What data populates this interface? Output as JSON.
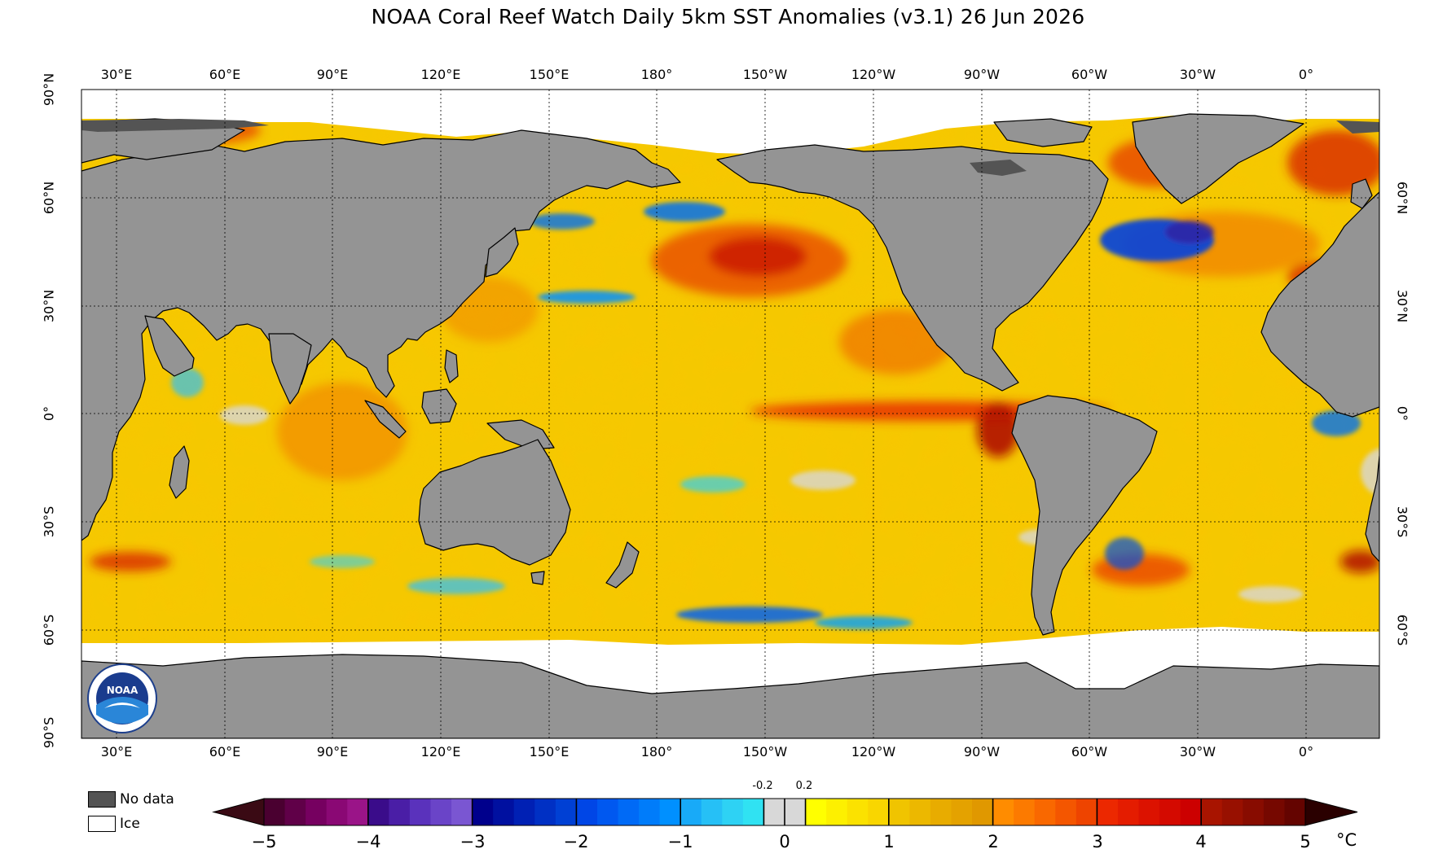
{
  "title": "NOAA Coral Reef Watch Daily 5km SST Anomalies  (v3.1)   26 Jun 2026",
  "longitude_labels": [
    "30°E",
    "60°E",
    "90°E",
    "120°E",
    "150°E",
    "180°",
    "150°W",
    "120°W",
    "90°W",
    "60°W",
    "30°W",
    "0°"
  ],
  "latitude_labels_left": [
    "90°N",
    "60°N",
    "30°N",
    "0°",
    "30°S",
    "60°S",
    "90°S"
  ],
  "latitude_labels_right": [
    "60°N",
    "30°N",
    "0°",
    "30°S",
    "60°S"
  ],
  "legend": {
    "no_data": "No data",
    "ice": "Ice",
    "no_data_color": "#545454",
    "ice_color": "#ffffff",
    "land_color": "#949494"
  },
  "colorbar": {
    "unit": "°C",
    "tick_labels": [
      "−5",
      "−4",
      "−3",
      "−2",
      "−1",
      "0",
      "1",
      "2",
      "3",
      "4",
      "5"
    ],
    "small_tick_labels": [
      "-0.2",
      "0.2"
    ],
    "colors": {
      "below": "#3a0a14",
      "neg5_to_neg4": [
        "#4a0030",
        "#600048",
        "#760060",
        "#8a0874",
        "#9a1488"
      ],
      "neg4_to_neg3": [
        "#3a0c8a",
        "#4a1ea6",
        "#5a32bc",
        "#6a44c8",
        "#7a56d2"
      ],
      "neg3_to_neg2": [
        "#00008c",
        "#0010a0",
        "#0020b4",
        "#0030c4",
        "#0040d4"
      ],
      "neg2_to_neg1": [
        "#0046e6",
        "#0058f0",
        "#006af6",
        "#007cfa",
        "#0090ff"
      ],
      "neg1_to_neg02": [
        "#18aaf8",
        "#26c0f6",
        "#2ed2f4",
        "#30e2f2"
      ],
      "neutral": "#d8d8d8",
      "p02_to_1": [
        "#ffff00",
        "#fdf000",
        "#fbe200",
        "#f9d600"
      ],
      "p1_to_2": [
        "#f0c400",
        "#ecb800",
        "#e8ac00",
        "#e4a200",
        "#e09800"
      ],
      "p2_to_3": [
        "#ff8c00",
        "#fc7a00",
        "#f96800",
        "#f45600",
        "#ee4400"
      ],
      "p3_to_4": [
        "#ec2800",
        "#e41c00",
        "#dc1200",
        "#d40a00",
        "#cc0000"
      ],
      "p4_to_5": [
        "#a81400",
        "#981000",
        "#880c00",
        "#760800",
        "#640400"
      ],
      "above": "#2a0000"
    }
  }
}
